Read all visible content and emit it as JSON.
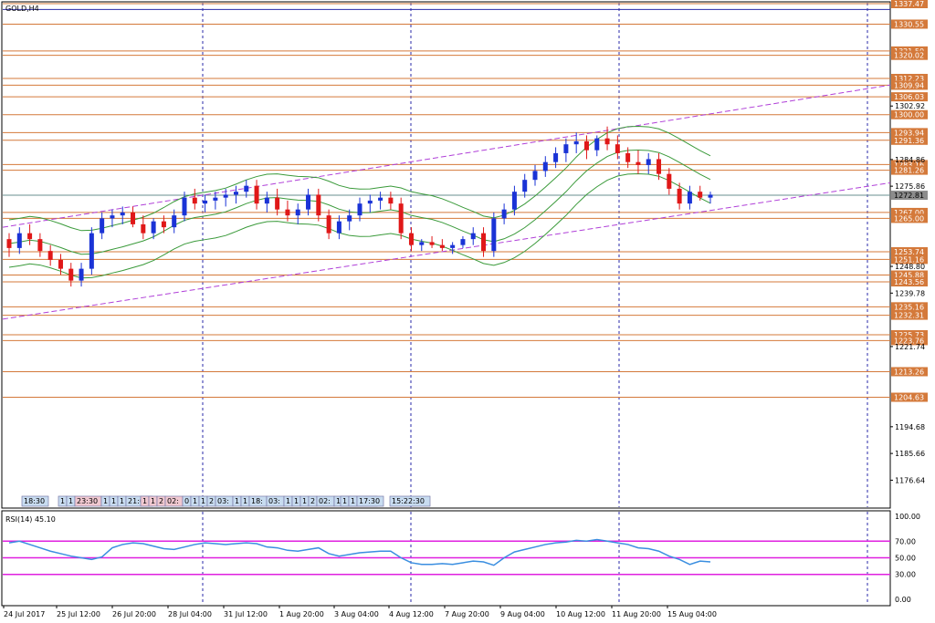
{
  "chart_title": "GOLD,H4",
  "rsi_label": "RSI(14) 45.10",
  "chart_data": {
    "type": "candlestick",
    "symbol": "GOLD",
    "timeframe": "H4",
    "ylim": [
      1170.0,
      1337.47
    ],
    "price_ticks": [
      "1302.92",
      "1284.86",
      "1275.86",
      "1248.80",
      "1239.78",
      "1221.74",
      "1194.68",
      "1185.66",
      "1176.64"
    ],
    "x_ticks": [
      "24 Jul 2017",
      "25 Jul 12:00",
      "26 Jul 20:00",
      "28 Jul 04:00",
      "31 Jul 12:00",
      "1 Aug 20:00",
      "3 Aug 04:00",
      "4 Aug 12:00",
      "7 Aug 20:00",
      "9 Aug 04:00",
      "10 Aug 12:00",
      "11 Aug 20:00",
      "15 Aug 04:00"
    ],
    "horizontal_levels": [
      "1337.47",
      "1330.55",
      "1321.50",
      "1320.02",
      "1312.23",
      "1309.94",
      "1306.03",
      "1300.00",
      "1293.94",
      "1291.36",
      "1283.16",
      "1281.26",
      "1267.00",
      "1265.00",
      "1253.74",
      "1251.16",
      "1245.88",
      "1243.56",
      "1235.16",
      "1232.31",
      "1225.73",
      "1223.76",
      "1213.26",
      "1204.63"
    ],
    "current_price": "1272.81",
    "candles": [
      [
        1258,
        1260,
        1252,
        1255
      ],
      [
        1255,
        1262,
        1253,
        1260
      ],
      [
        1260,
        1263,
        1256,
        1258
      ],
      [
        1258,
        1260,
        1252,
        1254
      ],
      [
        1254,
        1256,
        1249,
        1251
      ],
      [
        1251,
        1253,
        1246,
        1248
      ],
      [
        1248,
        1250,
        1242,
        1244
      ],
      [
        1244,
        1250,
        1242,
        1248
      ],
      [
        1248,
        1262,
        1246,
        1260
      ],
      [
        1260,
        1267,
        1258,
        1265
      ],
      [
        1265,
        1268,
        1262,
        1266
      ],
      [
        1266,
        1269,
        1263,
        1267
      ],
      [
        1267,
        1269,
        1262,
        1263
      ],
      [
        1263,
        1266,
        1258,
        1260
      ],
      [
        1260,
        1265,
        1258,
        1264
      ],
      [
        1264,
        1266,
        1260,
        1262
      ],
      [
        1262,
        1268,
        1260,
        1266
      ],
      [
        1266,
        1274,
        1264,
        1272
      ],
      [
        1272,
        1275,
        1268,
        1270
      ],
      [
        1270,
        1273,
        1267,
        1271
      ],
      [
        1271,
        1274,
        1268,
        1272
      ],
      [
        1272,
        1275,
        1269,
        1273
      ],
      [
        1273,
        1276,
        1270,
        1274
      ],
      [
        1274,
        1278,
        1272,
        1276
      ],
      [
        1276,
        1278,
        1268,
        1270
      ],
      [
        1270,
        1274,
        1267,
        1272
      ],
      [
        1272,
        1275,
        1266,
        1268
      ],
      [
        1268,
        1271,
        1264,
        1266
      ],
      [
        1266,
        1270,
        1263,
        1268
      ],
      [
        1268,
        1275,
        1266,
        1273
      ],
      [
        1273,
        1275,
        1264,
        1266
      ],
      [
        1266,
        1268,
        1258,
        1260
      ],
      [
        1260,
        1266,
        1258,
        1264
      ],
      [
        1264,
        1268,
        1261,
        1266
      ],
      [
        1266,
        1272,
        1264,
        1270
      ],
      [
        1270,
        1273,
        1267,
        1271
      ],
      [
        1271,
        1274,
        1268,
        1272
      ],
      [
        1272,
        1274,
        1268,
        1270
      ],
      [
        1270,
        1272,
        1258,
        1260
      ],
      [
        1260,
        1262,
        1254,
        1256
      ],
      [
        1256,
        1258,
        1254,
        1257
      ],
      [
        1257,
        1259,
        1255,
        1256
      ],
      [
        1256,
        1258,
        1254,
        1255
      ],
      [
        1255,
        1257,
        1253,
        1256
      ],
      [
        1256,
        1259,
        1255,
        1258
      ],
      [
        1258,
        1262,
        1256,
        1260
      ],
      [
        1260,
        1262,
        1252,
        1254
      ],
      [
        1254,
        1267,
        1252,
        1265
      ],
      [
        1265,
        1270,
        1263,
        1268
      ],
      [
        1268,
        1276,
        1266,
        1274
      ],
      [
        1274,
        1280,
        1272,
        1278
      ],
      [
        1278,
        1283,
        1276,
        1281
      ],
      [
        1281,
        1286,
        1279,
        1284
      ],
      [
        1284,
        1289,
        1282,
        1287
      ],
      [
        1287,
        1292,
        1284,
        1290
      ],
      [
        1290,
        1294,
        1287,
        1291
      ],
      [
        1291,
        1293,
        1285,
        1288
      ],
      [
        1288,
        1293,
        1286,
        1292
      ],
      [
        1292,
        1296,
        1288,
        1290
      ],
      [
        1290,
        1293,
        1285,
        1287
      ],
      [
        1287,
        1289,
        1282,
        1284
      ],
      [
        1284,
        1288,
        1280,
        1283
      ],
      [
        1283,
        1287,
        1280,
        1285
      ],
      [
        1285,
        1287,
        1278,
        1280
      ],
      [
        1280,
        1282,
        1273,
        1275
      ],
      [
        1275,
        1277,
        1268,
        1270
      ],
      [
        1270,
        1276,
        1268,
        1274
      ],
      [
        1274,
        1276,
        1271,
        1272
      ],
      [
        1272,
        1274,
        1270,
        1273
      ]
    ],
    "rsi": {
      "name": "RSI(14)",
      "value": 45.1,
      "ylim": [
        0,
        100
      ],
      "ticks": [
        "100.00",
        "70.00",
        "50.00",
        "30.00",
        "0.00"
      ],
      "levels": [
        70,
        50,
        30
      ],
      "values": [
        68,
        70,
        66,
        62,
        58,
        55,
        52,
        50,
        48,
        51,
        62,
        66,
        68,
        67,
        64,
        61,
        60,
        63,
        66,
        68,
        67,
        66,
        67,
        68,
        67,
        63,
        62,
        59,
        58,
        60,
        62,
        55,
        52,
        54,
        56,
        57,
        58,
        58,
        50,
        44,
        42,
        42,
        43,
        42,
        44,
        46,
        45,
        41,
        50,
        57,
        60,
        63,
        66,
        68,
        69,
        71,
        70,
        72,
        70,
        68,
        66,
        62,
        61,
        58,
        52,
        48,
        42,
        46,
        45
      ]
    },
    "bands_note": "Bollinger bands, moving average, channel lines shown as overlays"
  },
  "time_labels": {
    "current": "18:30",
    "group1": [
      "1",
      "1",
      "23:30",
      "1",
      "1",
      "1",
      "21:00"
    ],
    "group2": [
      "1",
      "1",
      "2",
      "02:",
      "0",
      "1",
      "1",
      "2",
      "03:",
      "1",
      "1",
      "18:",
      "03:",
      "1",
      "1",
      "1",
      "2",
      "02:",
      "1",
      "1",
      "17:30"
    ],
    "group3": [
      "1",
      "1",
      "17:30"
    ],
    "group4": "15:22:30"
  }
}
